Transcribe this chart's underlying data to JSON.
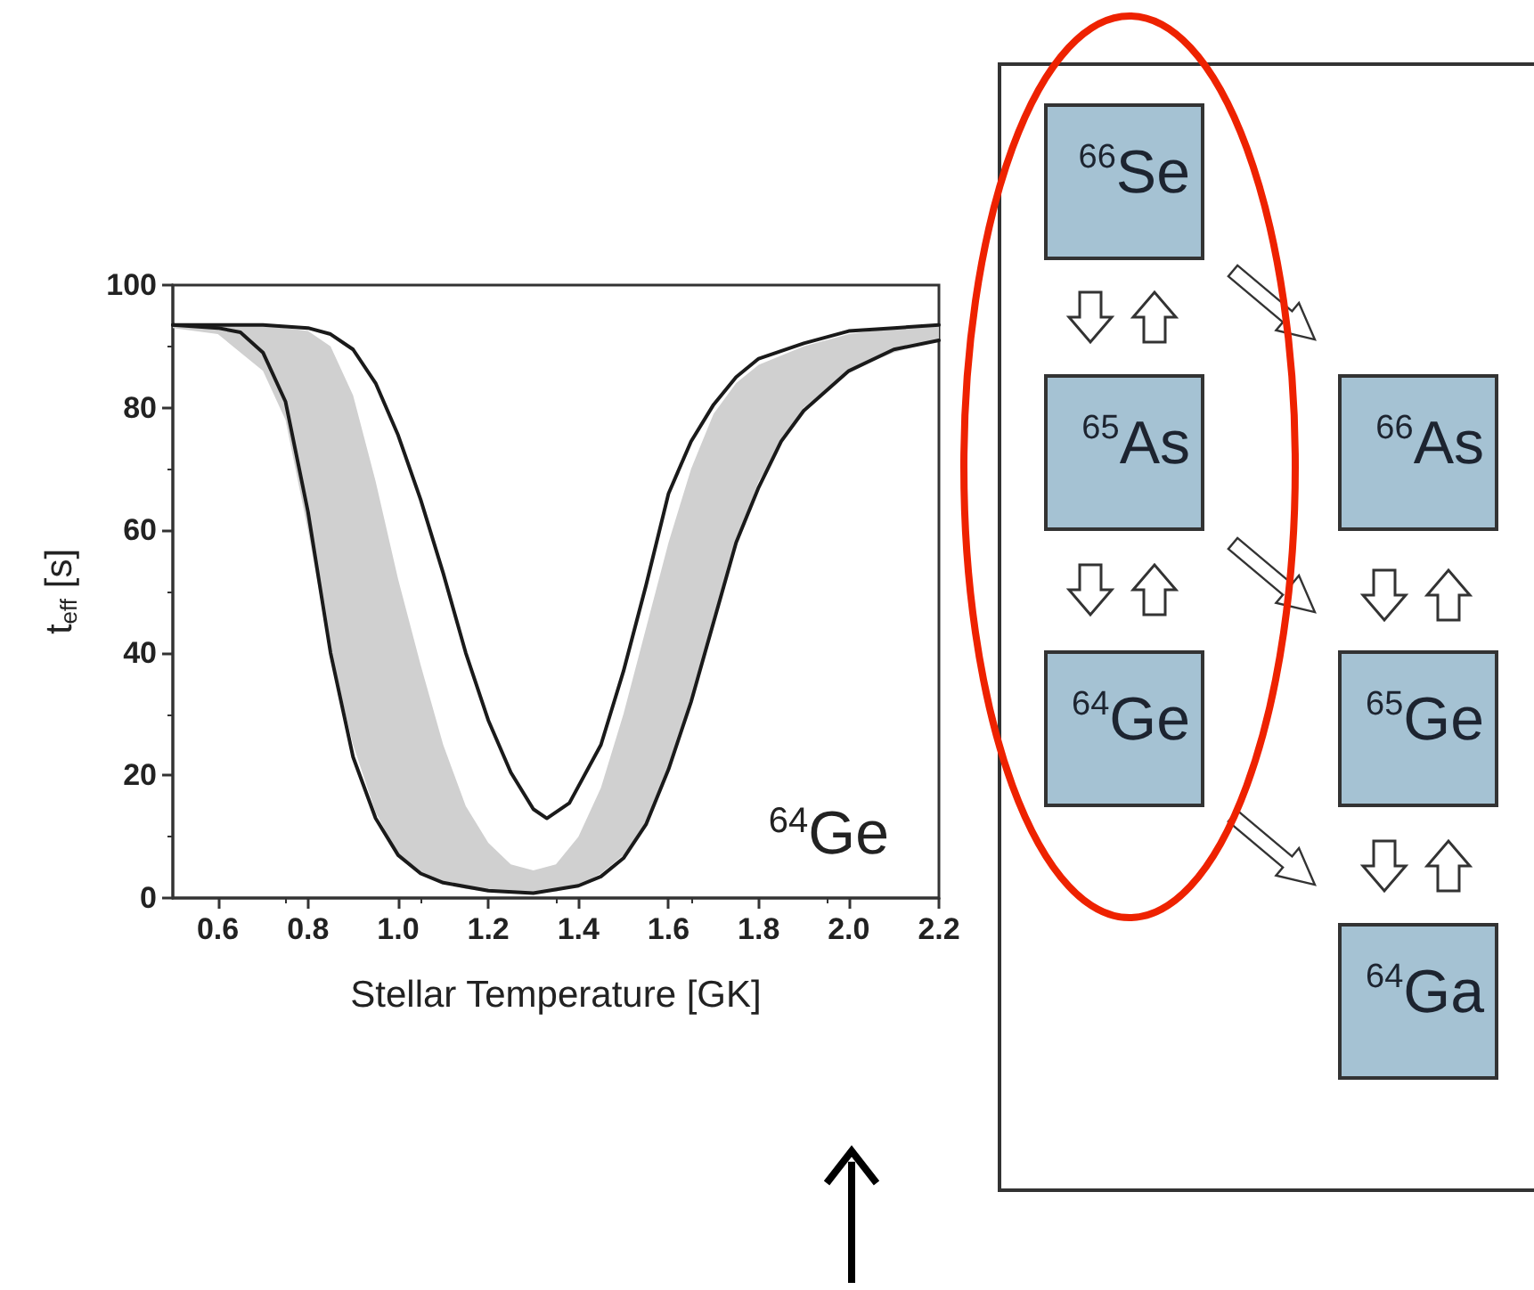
{
  "chart_data": [
    {
      "type": "line",
      "xlabel": "Stellar Temperature [GK]",
      "ylabel": "t$_{eff}$ [s]",
      "xlim": [
        0.5,
        2.2
      ],
      "ylim": [
        0,
        100
      ],
      "xticks": [
        0.6,
        0.8,
        {
          "value": 1,
          "label": "1.0"
        },
        1.2,
        1.4,
        1.6,
        1.8,
        {
          "value": 2,
          "label": "2.0"
        },
        2.2
      ],
      "yticks": [
        0,
        20,
        40,
        60,
        80,
        100
      ],
      "grid": false,
      "marker": "none",
      "line_style": "solid",
      "annotations": [
        "$^{64}$Ge"
      ],
      "series": [
        {
          "type": "area",
          "color": "#d0d0d0",
          "values": [
            null,
            null,
            null,
            null,
            null,
            null,
            null,
            null,
            null,
            null,
            null,
            null,
            null,
            null,
            null,
            null,
            null,
            null,
            null,
            null,
            null,
            null,
            null,
            null,
            null,
            null,
            null,
            null,
            null
          ],
          "x": [
            0.5,
            0.6,
            0.7,
            0.75,
            0.8,
            0.85,
            0.9,
            0.95,
            1.0,
            1.05,
            1.1,
            1.15,
            1.2,
            1.25,
            1.3,
            1.35,
            1.4,
            1.45,
            1.5,
            1.55,
            1.6,
            1.65,
            1.7,
            1.75,
            1.8,
            1.9,
            2.0,
            2.1,
            2.2
          ],
          "lower": [
            93,
            92,
            86,
            78,
            60,
            40,
            25,
            14,
            7,
            4,
            2.5,
            1.5,
            1,
            0.8,
            0.8,
            1,
            2,
            4,
            7,
            12,
            21,
            32,
            46,
            58,
            68,
            80,
            86,
            89,
            91
          ],
          "upper": [
            93.5,
            93.5,
            93.5,
            93,
            92.5,
            90,
            82,
            68,
            52,
            38,
            25,
            15,
            9,
            5.5,
            4.5,
            5.5,
            10,
            18,
            30,
            44,
            58,
            70,
            79,
            84,
            87,
            90,
            92,
            93,
            93.5
          ]
        },
        {
          "color": "#1a1a1a",
          "x": [
            0.5,
            0.7,
            0.8,
            0.85,
            0.9,
            0.95,
            1.0,
            1.05,
            1.1,
            1.15,
            1.2,
            1.25,
            1.3,
            1.33,
            1.38,
            1.45,
            1.5,
            1.55,
            1.6,
            1.65,
            1.7,
            1.75,
            1.8,
            1.9,
            2.0,
            2.1,
            2.2
          ],
          "values": [
            93.5,
            93.5,
            93,
            92,
            89.5,
            84,
            75.5,
            65,
            53,
            40,
            29,
            20.5,
            14.5,
            13,
            15.5,
            25,
            37,
            51,
            66,
            74.5,
            80.5,
            85,
            88,
            90.5,
            92.5,
            93,
            93.5
          ]
        },
        {
          "color": "#1a1a1a",
          "x": [
            0.5,
            0.6,
            0.65,
            0.7,
            0.75,
            0.8,
            0.85,
            0.9,
            0.95,
            1.0,
            1.05,
            1.1,
            1.2,
            1.3,
            1.4,
            1.45,
            1.5,
            1.55,
            1.6,
            1.65,
            1.7,
            1.75,
            1.8,
            1.85,
            1.9,
            2.0,
            2.1,
            2.2
          ],
          "values": [
            93.5,
            93,
            92.3,
            89,
            81,
            63,
            40,
            23,
            13,
            7,
            4,
            2.5,
            1.2,
            0.8,
            2,
            3.5,
            6.5,
            12,
            21,
            32,
            45,
            58,
            67,
            74.5,
            79.5,
            86,
            89.5,
            91
          ]
        }
      ]
    },
    {
      "type": "other",
      "annotations": [
        "$^{66}$Se",
        "$^{65}$As",
        "$^{64}$Ge",
        "$^{66}$As",
        "$^{65}$Ge",
        "$^{64}$Ga"
      ]
    }
  ]
}
